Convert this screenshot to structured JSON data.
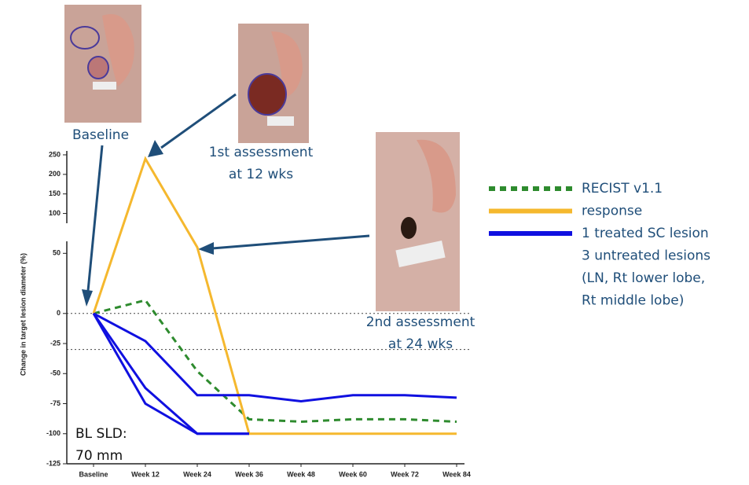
{
  "chart_data": {
    "type": "line",
    "y_label": "Change in target lesion diameter (%)",
    "categories": [
      "Baseline",
      "Week 12",
      "Week 24",
      "Week 36",
      "Week 48",
      "Week 60",
      "Week 72",
      "Week 84"
    ],
    "series": [
      {
        "name": "RECIST v1.1",
        "color": "#2e8b2e",
        "dash": true,
        "values": [
          0,
          11,
          -48,
          -88,
          -90,
          -88,
          -88,
          -90
        ]
      },
      {
        "name": "response",
        "color": "#f5b82e",
        "values": [
          0,
          240,
          55,
          -100,
          -100,
          -100,
          -100,
          -100
        ]
      },
      {
        "name": "1 treated SC lesion",
        "color": "#1010e0",
        "values": [
          0,
          -23,
          -68,
          -68,
          -73,
          -68,
          -68,
          -70
        ]
      },
      {
        "color": "#1010e0",
        "values": [
          0,
          -62,
          -100,
          -100,
          null,
          null,
          null,
          null
        ]
      },
      {
        "color": "#1010e0",
        "values": [
          0,
          -75,
          -100,
          -100,
          null,
          null,
          null,
          null
        ]
      }
    ],
    "legend_extra": [
      "3 untreated lesions",
      "(LN, Rt lower lobe,",
      "Rt middle lobe)"
    ],
    "ylim": [
      -125,
      60
    ],
    "yticks": [
      -125,
      -100,
      -75,
      -50,
      -25,
      0,
      50
    ],
    "ylim_upper": [
      75,
      260
    ],
    "yticks_upper": [
      100,
      150,
      200,
      250
    ],
    "reference_lines": [
      0,
      -30
    ],
    "annotations": [
      [
        "Baseline"
      ],
      [
        "1st assessment",
        "at 12 wks"
      ],
      [
        "2nd assessment",
        "at 24 wks"
      ],
      [
        "BL SLD:",
        "70 mm"
      ]
    ]
  }
}
